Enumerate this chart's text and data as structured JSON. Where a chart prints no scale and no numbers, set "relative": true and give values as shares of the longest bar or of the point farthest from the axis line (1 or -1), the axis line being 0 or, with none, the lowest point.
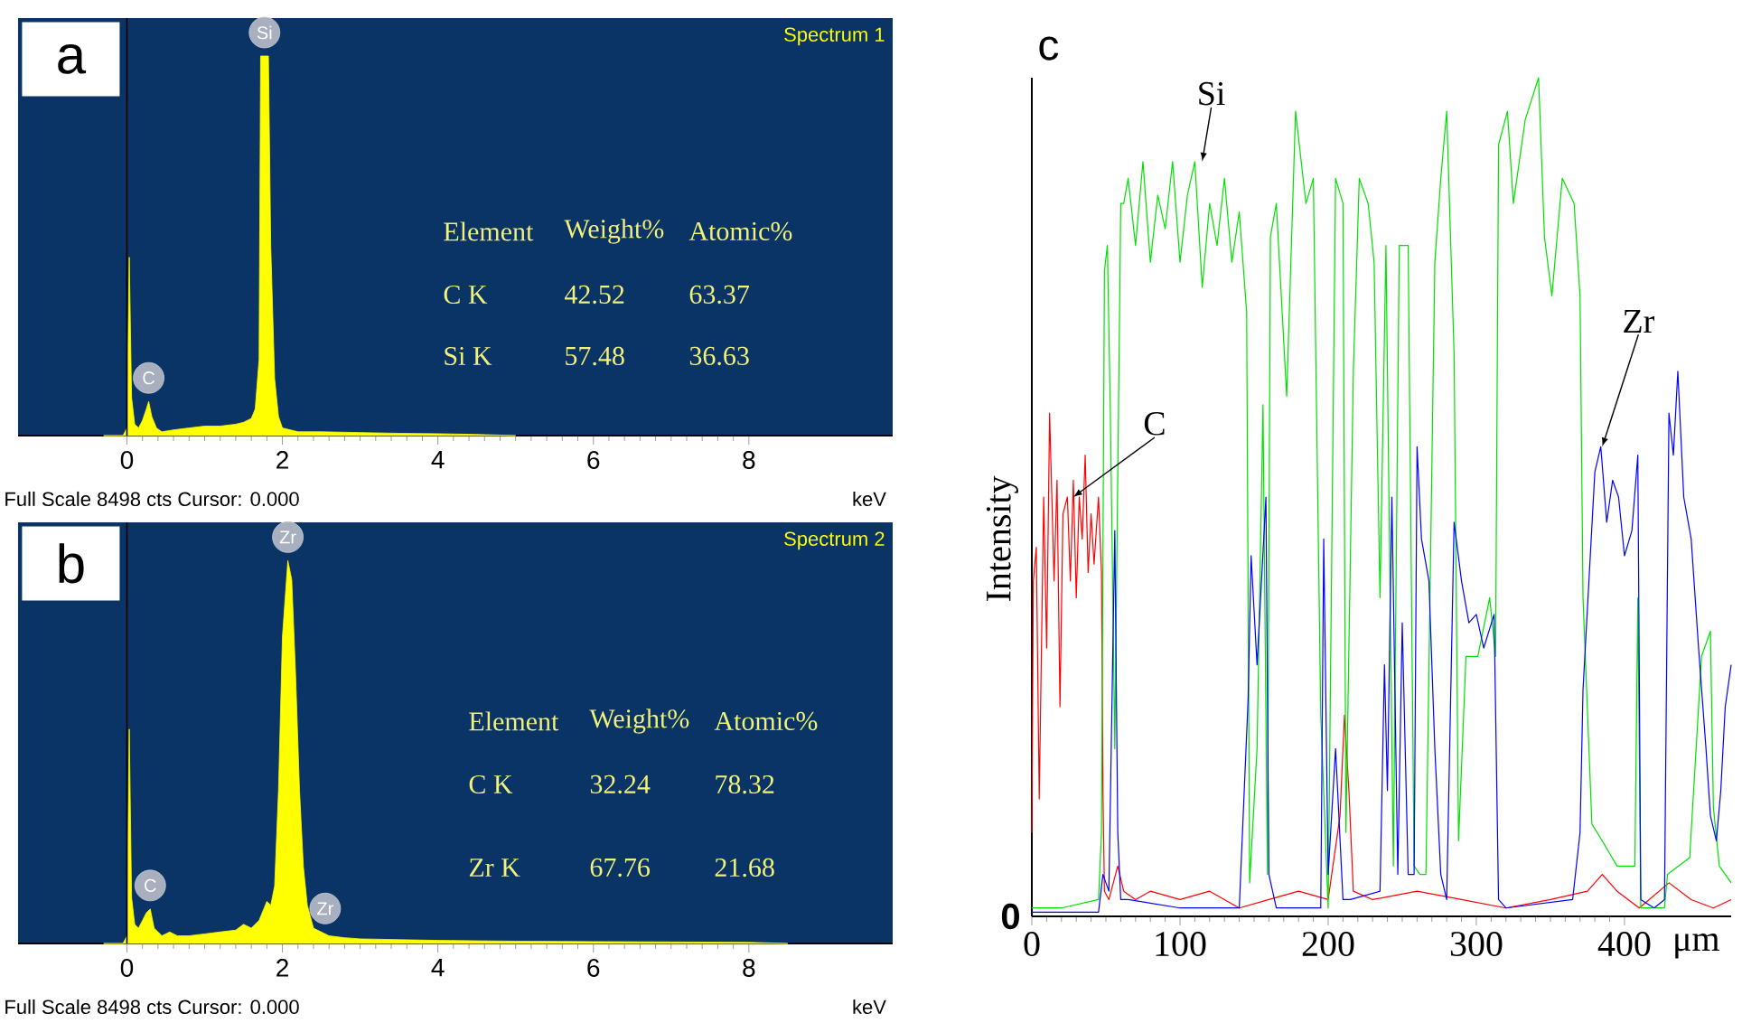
{
  "chart_data": [
    {
      "type": "area",
      "title": "a",
      "subtitle": "Spectrum 1",
      "xlabel": "keV",
      "relative": true,
      "color": "#ffff00",
      "xlim": [
        -1.4,
        9.85
      ],
      "xticks": [
        0,
        2,
        4,
        6,
        8
      ],
      "x": [
        -0.3,
        -0.05,
        0.0,
        0.03,
        0.06,
        0.1,
        0.15,
        0.2,
        0.25,
        0.28,
        0.32,
        0.38,
        0.45,
        0.6,
        0.8,
        1.0,
        1.2,
        1.4,
        1.5,
        1.6,
        1.65,
        1.7,
        1.72,
        1.82,
        1.85,
        1.9,
        1.95,
        2.0,
        2.2,
        2.5,
        3.0,
        3.5,
        4.0,
        4.5,
        5.0
      ],
      "values": [
        0,
        0,
        0.02,
        0.47,
        0.1,
        0.03,
        0.02,
        0.04,
        0.07,
        0.09,
        0.05,
        0.02,
        0.01,
        0.015,
        0.02,
        0.025,
        0.025,
        0.03,
        0.035,
        0.045,
        0.07,
        0.2,
        1,
        1,
        0.5,
        0.15,
        0.05,
        0.02,
        0.01,
        0.01,
        0.008,
        0.006,
        0.005,
        0.003,
        0
      ],
      "ref_lines": [
        {
          "axis": "x",
          "value": 0,
          "color": "#000000"
        }
      ],
      "annotations": [
        {
          "text": "Si",
          "x": 1.77,
          "y": 1
        },
        {
          "text": "C",
          "x": 0.28,
          "y": 0.09
        },
        "Element",
        "Weight%",
        "Atomic%",
        "C K",
        "42.52",
        "63.37",
        "Si K",
        "57.48",
        "36.63",
        "Full Scale 8498 cts Cursor: 0.000"
      ]
    },
    {
      "type": "area",
      "title": "b",
      "subtitle": "Spectrum 2",
      "xlabel": "keV",
      "relative": true,
      "color": "#ffff00",
      "xlim": [
        -1.4,
        9.85
      ],
      "xticks": [
        0,
        2,
        4,
        6,
        8
      ],
      "x": [
        -0.3,
        -0.05,
        0.0,
        0.03,
        0.06,
        0.1,
        0.15,
        0.2,
        0.25,
        0.3,
        0.35,
        0.45,
        0.55,
        0.65,
        0.8,
        1.0,
        1.2,
        1.4,
        1.5,
        1.6,
        1.7,
        1.8,
        1.85,
        1.9,
        1.95,
        2.0,
        2.07,
        2.12,
        2.17,
        2.22,
        2.27,
        2.32,
        2.4,
        2.5,
        2.6,
        2.8,
        3.0,
        3.5,
        4.0,
        5.0,
        6.0,
        7.0,
        8.0,
        8.5
      ],
      "values": [
        0,
        0,
        0.02,
        0.56,
        0.12,
        0.05,
        0.04,
        0.06,
        0.08,
        0.09,
        0.04,
        0.02,
        0.03,
        0.02,
        0.02,
        0.025,
        0.03,
        0.035,
        0.05,
        0.04,
        0.06,
        0.11,
        0.1,
        0.15,
        0.4,
        0.8,
        1,
        0.95,
        0.7,
        0.4,
        0.2,
        0.1,
        0.04,
        0.03,
        0.02,
        0.015,
        0.012,
        0.01,
        0.008,
        0.006,
        0.005,
        0.004,
        0.003,
        0
      ],
      "ref_lines": [
        {
          "axis": "x",
          "value": 0,
          "color": "#000000"
        }
      ],
      "annotations": [
        {
          "text": "Zr",
          "x": 2.07,
          "y": 1
        },
        {
          "text": "C",
          "x": 0.3,
          "y": 0.09
        },
        {
          "text": "Zr",
          "x": 2.55,
          "y": 0.03
        },
        "Element",
        "Weight%",
        "Atomic%",
        "C K",
        "32.24",
        "78.32",
        "Zr K",
        "67.76",
        "21.68",
        "Full Scale 8498 cts Cursor: 0.000"
      ]
    },
    {
      "type": "line",
      "title": "c",
      "xlabel": "μm",
      "ylabel": "Intensity",
      "relative": true,
      "xlim": [
        0,
        472
      ],
      "xticks": [
        0,
        100,
        200,
        300,
        400
      ],
      "series": [
        {
          "color": "#ff0000",
          "x": [
            0,
            1,
            3,
            5,
            8,
            10,
            12,
            15,
            17,
            19,
            21,
            24,
            26,
            28,
            30,
            32,
            34,
            36,
            38,
            40,
            42,
            45,
            47,
            48,
            49,
            52,
            58,
            62,
            70,
            80,
            100,
            120,
            140,
            160,
            180,
            200,
            208,
            211,
            214,
            217,
            230,
            260,
            290,
            320,
            350,
            375,
            385,
            395,
            410,
            430,
            445,
            460,
            472
          ],
          "values": [
            0.1,
            0.4,
            0.44,
            0.14,
            0.5,
            0.32,
            0.6,
            0.4,
            0.52,
            0.25,
            0.48,
            0.5,
            0.4,
            0.52,
            0.38,
            0.5,
            0.45,
            0.55,
            0.41,
            0.48,
            0.42,
            0.5,
            0.41,
            0.15,
            0.03,
            0.02,
            0.06,
            0.03,
            0.02,
            0.03,
            0.02,
            0.03,
            0.01,
            0.02,
            0.03,
            0.02,
            0.12,
            0.24,
            0.15,
            0.03,
            0.02,
            0.03,
            0.02,
            0.01,
            0.02,
            0.03,
            0.05,
            0.03,
            0.01,
            0.04,
            0.02,
            0.01,
            0.02
          ]
        },
        {
          "color": "#00e000",
          "x": [
            0,
            20,
            45,
            47,
            49,
            51,
            53,
            56,
            60,
            62,
            65,
            70,
            75,
            80,
            85,
            90,
            95,
            100,
            105,
            110,
            115,
            120,
            125,
            130,
            135,
            140,
            145,
            147,
            152,
            156,
            159,
            161,
            165,
            172,
            178,
            185,
            190,
            195,
            200,
            205,
            210,
            212,
            217,
            221,
            227,
            231,
            235,
            239,
            244,
            248,
            254,
            258,
            262,
            266,
            272,
            276,
            280,
            285,
            288,
            293,
            301,
            309,
            313,
            315,
            321,
            325,
            333,
            342,
            346,
            351,
            358,
            366,
            370,
            372,
            378,
            385,
            395,
            407,
            409,
            411,
            427,
            429,
            444,
            452,
            458,
            460,
            464,
            472
          ],
          "values": [
            0.01,
            0.01,
            0.02,
            0.1,
            0.77,
            0.8,
            0.6,
            0.2,
            0.85,
            0.85,
            0.88,
            0.8,
            0.9,
            0.78,
            0.86,
            0.82,
            0.9,
            0.78,
            0.86,
            0.9,
            0.75,
            0.85,
            0.8,
            0.88,
            0.78,
            0.84,
            0.72,
            0.04,
            0.2,
            0.61,
            0.05,
            0.81,
            0.85,
            0.62,
            0.96,
            0.85,
            0.88,
            0.24,
            0.01,
            0.88,
            0.85,
            0.1,
            0.65,
            0.88,
            0.85,
            0.78,
            0.38,
            0.8,
            0.06,
            0.8,
            0.8,
            0.06,
            0.05,
            0.05,
            0.78,
            0.88,
            0.96,
            0.67,
            0.09,
            0.31,
            0.31,
            0.38,
            0.31,
            0.92,
            0.96,
            0.85,
            0.95,
            1.0,
            0.81,
            0.74,
            0.88,
            0.85,
            0.74,
            0.38,
            0.11,
            0.09,
            0.06,
            0.06,
            0.38,
            0.01,
            0.01,
            0.05,
            0.07,
            0.31,
            0.34,
            0.13,
            0.06,
            0.04
          ]
        },
        {
          "color": "#0000ff",
          "x": [
            0,
            45,
            48,
            52,
            56,
            58,
            60,
            65,
            100,
            140,
            146,
            148,
            152,
            158,
            160,
            165,
            195,
            197,
            200,
            205,
            210,
            215,
            235,
            238,
            240,
            243,
            247,
            250,
            254,
            258,
            260,
            263,
            268,
            272,
            276,
            280,
            285,
            290,
            295,
            300,
            305,
            312,
            315,
            320,
            365,
            370,
            372,
            376,
            380,
            384,
            388,
            392,
            396,
            400,
            405,
            409,
            411,
            420,
            427,
            430,
            433,
            436,
            440,
            445,
            450,
            455,
            458,
            462,
            465,
            468,
            472
          ],
          "values": [
            0.005,
            0.005,
            0.05,
            0.03,
            0.46,
            0.1,
            0.02,
            0.02,
            0.01,
            0.01,
            0.26,
            0.43,
            0.3,
            0.5,
            0.05,
            0.01,
            0.01,
            0.45,
            0.05,
            0.2,
            0.02,
            0.02,
            0.03,
            0.3,
            0.15,
            0.5,
            0.05,
            0.35,
            0.05,
            0.05,
            0.56,
            0.45,
            0.4,
            0.2,
            0.05,
            0.02,
            0.47,
            0.4,
            0.35,
            0.36,
            0.32,
            0.36,
            0.02,
            0.01,
            0.02,
            0.1,
            0.27,
            0.4,
            0.53,
            0.56,
            0.47,
            0.52,
            0.5,
            0.43,
            0.46,
            0.55,
            0.02,
            0.01,
            0.02,
            0.6,
            0.55,
            0.65,
            0.5,
            0.45,
            0.32,
            0.2,
            0.12,
            0.09,
            0.15,
            0.25,
            0.3
          ]
        }
      ],
      "annotations": [
        "0",
        {
          "text": "Si",
          "x": 115,
          "y": 0.9
        },
        {
          "text": "C",
          "x": 28,
          "y": 0.5
        },
        {
          "text": "Zr",
          "x": 385,
          "y": 0.56
        }
      ]
    }
  ]
}
